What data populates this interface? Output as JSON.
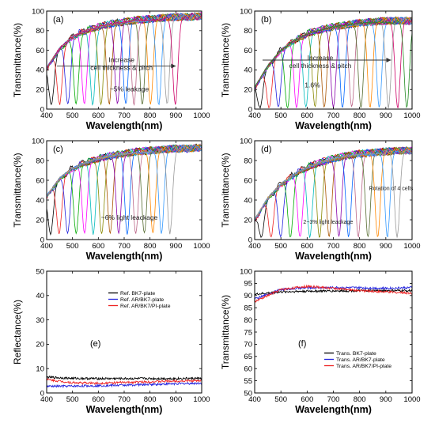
{
  "chart_data": [
    {
      "panel": "(a)",
      "type": "line",
      "xlabel": "Wavelength(nm)",
      "ylabel": "Transmittance(%)",
      "xlim": [
        400,
        1000
      ],
      "ylim": [
        0,
        100
      ],
      "xticks": [
        400,
        500,
        600,
        700,
        800,
        900,
        1000
      ],
      "yticks": [
        0,
        20,
        40,
        60,
        80,
        100
      ],
      "grid": false,
      "annotations": [
        {
          "text": "Increase",
          "x": 690,
          "y": 48
        },
        {
          "text": "cell thickness & pitch",
          "x": 690,
          "y": 40
        },
        {
          "text": "~5% leakage",
          "x": 720,
          "y": 18
        }
      ],
      "arrow": {
        "from": [
          440,
          44
        ],
        "to": [
          900,
          44
        ]
      },
      "envelope": {
        "x": [
          400,
          450,
          500,
          550,
          600,
          650,
          700,
          750,
          800,
          850,
          900,
          950,
          1000
        ],
        "y": [
          42,
          62,
          74,
          80,
          84,
          87,
          89,
          91,
          92,
          93,
          94,
          94,
          95
        ]
      },
      "dips": {
        "centers": [
          418,
          450,
          482,
          514,
          546,
          578,
          610,
          642,
          674,
          706,
          738,
          770,
          802,
          834,
          866,
          898
        ],
        "min_transmittance": 5,
        "width_nm": 14
      }
    },
    {
      "panel": "(b)",
      "type": "line",
      "xlabel": "Wavelength(nm)",
      "ylabel": "Transmittance(%)",
      "xlim": [
        400,
        1000
      ],
      "ylim": [
        0,
        100
      ],
      "xticks": [
        400,
        500,
        600,
        700,
        800,
        900,
        1000
      ],
      "yticks": [
        0,
        20,
        40,
        60,
        80,
        100
      ],
      "grid": false,
      "annotations": [
        {
          "text": "Increase",
          "x": 650,
          "y": 50
        },
        {
          "text": "cell thickness & pitch",
          "x": 650,
          "y": 42
        },
        {
          "text": "1.6%",
          "x": 620,
          "y": 22
        }
      ],
      "arrow": {
        "from": [
          430,
          50
        ],
        "to": [
          920,
          50
        ]
      },
      "envelope": {
        "x": [
          400,
          450,
          500,
          550,
          600,
          650,
          700,
          750,
          800,
          850,
          900,
          950,
          1000
        ],
        "y": [
          22,
          44,
          60,
          70,
          77,
          81,
          84,
          86,
          88,
          89,
          90,
          90,
          90
        ]
      },
      "dips": {
        "centers": [
          420,
          455,
          490,
          525,
          560,
          595,
          630,
          665,
          700,
          735,
          770,
          805,
          840,
          875,
          910,
          945,
          980
        ],
        "min_transmittance": 1.6,
        "width_nm": 14
      }
    },
    {
      "panel": "(c)",
      "type": "line",
      "xlabel": "Wavelength(nm)",
      "ylabel": "Transmittance(%)",
      "xlim": [
        400,
        1000
      ],
      "ylim": [
        0,
        100
      ],
      "xticks": [
        400,
        500,
        600,
        700,
        800,
        900,
        1000
      ],
      "yticks": [
        0,
        20,
        40,
        60,
        80,
        100
      ],
      "grid": false,
      "annotations": [
        {
          "text": "~6% light leackage",
          "x": 720,
          "y": 20
        }
      ],
      "envelope": {
        "x": [
          400,
          450,
          500,
          550,
          600,
          650,
          700,
          750,
          800,
          850,
          900,
          950,
          1000
        ],
        "y": [
          44,
          62,
          72,
          78,
          82,
          85,
          87,
          89,
          90,
          91,
          92,
          92,
          93
        ]
      },
      "dips": {
        "centers": [
          415,
          448,
          481,
          514,
          547,
          580,
          613,
          646,
          679,
          712,
          745,
          778,
          811,
          844,
          877
        ],
        "min_transmittance": 6,
        "width_nm": 14
      }
    },
    {
      "panel": "(d)",
      "type": "line",
      "xlabel": "Wavelength(nm)",
      "ylabel": "Transmittance(%)",
      "xlim": [
        400,
        1000
      ],
      "ylim": [
        0,
        100
      ],
      "xticks": [
        400,
        500,
        600,
        700,
        800,
        900,
        1000
      ],
      "yticks": [
        0,
        20,
        40,
        60,
        80,
        100
      ],
      "grid": false,
      "annotations": [
        {
          "text": "Rotation of 4 cells",
          "x": 920,
          "y": 50
        },
        {
          "text": "2~3% light leackage",
          "x": 680,
          "y": 16
        }
      ],
      "envelope": {
        "x": [
          400,
          450,
          500,
          550,
          600,
          650,
          700,
          750,
          800,
          850,
          900,
          950,
          1000
        ],
        "y": [
          20,
          42,
          56,
          66,
          73,
          78,
          82,
          85,
          87,
          88,
          89,
          90,
          90
        ]
      },
      "dips": {
        "centers": [
          425,
          462,
          499,
          536,
          573,
          610,
          647,
          684,
          721,
          758,
          795,
          832,
          869,
          906,
          943
        ],
        "min_transmittance": 2.5,
        "width_nm": 14
      }
    },
    {
      "panel": "(e)",
      "type": "line",
      "xlabel": "Wavelength(nm)",
      "ylabel": "Reflectance(%)",
      "xlim": [
        400,
        1000
      ],
      "ylim": [
        0,
        50
      ],
      "xticks": [
        400,
        500,
        600,
        700,
        800,
        900,
        1000
      ],
      "yticks": [
        0,
        10,
        20,
        30,
        40,
        50
      ],
      "grid": false,
      "legend": "top-right",
      "series": [
        {
          "name": "Ref. BK7-plate",
          "color": "#000000",
          "x": [
            400,
            500,
            600,
            700,
            800,
            900,
            1000
          ],
          "y": [
            6.5,
            6.0,
            5.9,
            5.9,
            5.9,
            5.9,
            6.0
          ]
        },
        {
          "name": "Ref. AR/BK7-plate",
          "color": "#2222dd",
          "x": [
            400,
            500,
            600,
            700,
            800,
            900,
            1000
          ],
          "y": [
            2.7,
            2.8,
            3.0,
            3.2,
            3.5,
            3.8,
            4.0
          ]
        },
        {
          "name": "Ref. AR/BK7/PI-plate",
          "color": "#ee2222",
          "x": [
            400,
            500,
            600,
            700,
            800,
            900,
            1000
          ],
          "y": [
            5.5,
            4.2,
            4.0,
            4.3,
            4.6,
            4.9,
            5.0
          ]
        }
      ]
    },
    {
      "panel": "(f)",
      "type": "line",
      "xlabel": "Wavelength(nm)",
      "ylabel": "Transmittance(%)",
      "xlim": [
        400,
        1000
      ],
      "ylim": [
        50,
        100
      ],
      "xticks": [
        400,
        500,
        600,
        700,
        800,
        900,
        1000
      ],
      "yticks": [
        50,
        55,
        60,
        65,
        70,
        75,
        80,
        85,
        90,
        95,
        100
      ],
      "grid": false,
      "legend": "bottom-right",
      "series": [
        {
          "name": "Trans. BK7-plate",
          "color": "#000000",
          "x": [
            400,
            500,
            600,
            700,
            800,
            900,
            1000
          ],
          "y": [
            90.5,
            91.5,
            91.8,
            91.9,
            92.0,
            92.0,
            92.0
          ]
        },
        {
          "name": "Trans. AR/BK7-plate",
          "color": "#2222dd",
          "x": [
            400,
            500,
            600,
            700,
            800,
            900,
            1000
          ],
          "y": [
            88.5,
            92.5,
            93.2,
            93.3,
            93.2,
            93.0,
            93.3
          ]
        },
        {
          "name": "Trans. AR/BK7/PI-plate",
          "color": "#ee2222",
          "x": [
            400,
            500,
            600,
            700,
            800,
            900,
            1000
          ],
          "y": [
            87.5,
            92.5,
            93.8,
            93.0,
            92.0,
            91.5,
            91.0
          ]
        }
      ]
    }
  ],
  "palette": [
    "#000000",
    "#ee2222",
    "#2222dd",
    "#00aa00",
    "#ff00ff",
    "#00bbbb",
    "#888800",
    "#aa5500",
    "#8800aa",
    "#0066ff",
    "#bb6688",
    "#556b2f",
    "#ff8800",
    "#3399ff",
    "#999999",
    "#cc0066",
    "#228b22"
  ]
}
